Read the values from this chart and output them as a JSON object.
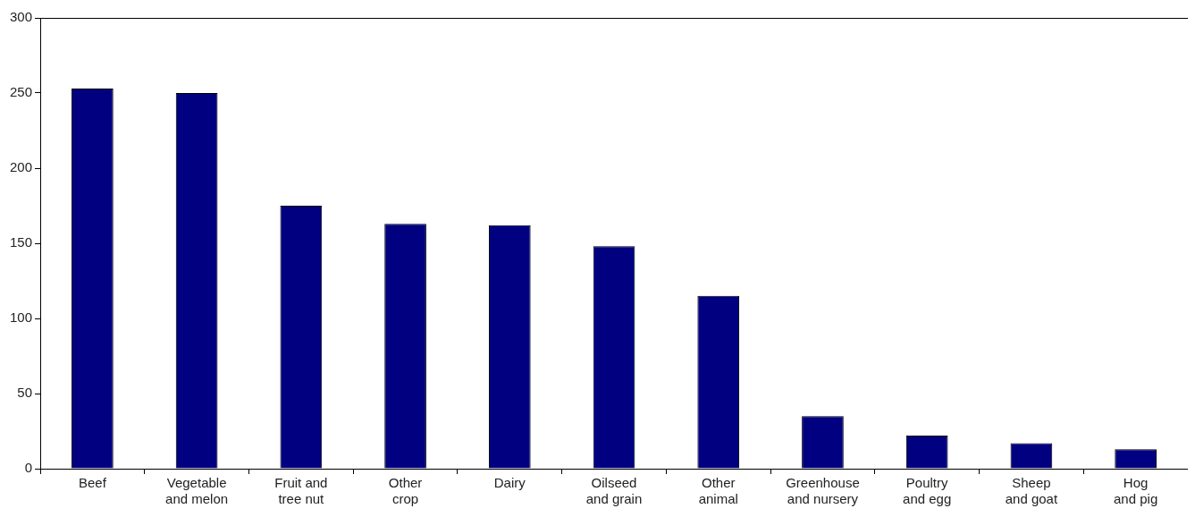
{
  "chart_data": {
    "type": "bar",
    "categories": [
      "Beef",
      "Vegetable\nand melon",
      "Fruit and\ntree nut",
      "Other\ncrop",
      "Dairy",
      "Oilseed\nand grain",
      "Other\nanimal",
      "Greenhouse\nand nursery",
      "Poultry\nand egg",
      "Sheep\nand goat",
      "Hog\nand pig"
    ],
    "values": [
      253,
      250,
      175,
      163,
      162,
      148,
      115,
      35,
      22,
      17,
      13
    ],
    "color": "#000080",
    "ylim": [
      0,
      300
    ],
    "yticks": [
      0,
      50,
      100,
      150,
      200,
      250,
      300
    ],
    "grid": false,
    "legend": false
  }
}
